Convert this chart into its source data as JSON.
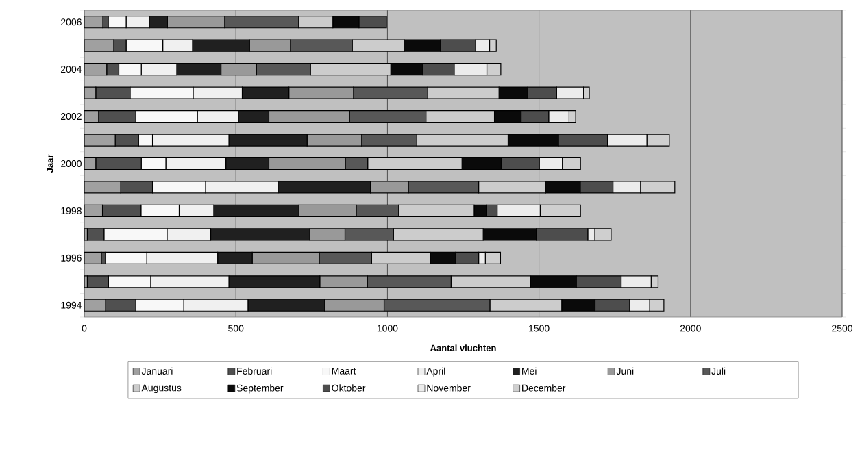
{
  "chart_data": {
    "type": "bar",
    "orientation": "horizontal",
    "stacked": true,
    "xlabel": "Aantal vluchten",
    "ylabel": "Jaar",
    "categories": [
      "2006",
      null,
      "2004",
      null,
      "2002",
      null,
      "2000",
      null,
      "1998",
      null,
      "1996",
      null,
      "1994"
    ],
    "xlim": [
      0,
      2500
    ],
    "xticks": [
      0,
      500,
      1000,
      1500,
      2000,
      2500
    ],
    "grid": "x",
    "legend": "bottom",
    "series": [
      {
        "name": "Januari",
        "color": "#a0a0a0",
        "values": [
          61,
          97,
          74,
          38,
          47,
          102,
          38,
          120,
          60,
          10,
          56,
          10,
          70
        ]
      },
      {
        "name": "Februari",
        "color": "#505050",
        "values": [
          18,
          41,
          40,
          113,
          123,
          77,
          150,
          105,
          127,
          55,
          14,
          70,
          100
        ]
      },
      {
        "name": "Maart",
        "color": "#f8f8f8",
        "values": [
          59,
          121,
          74,
          208,
          203,
          46,
          81,
          175,
          126,
          208,
          136,
          139,
          158
        ]
      },
      {
        "name": "April",
        "color": "#f0f0f0",
        "values": [
          77,
          98,
          117,
          162,
          135,
          252,
          198,
          239,
          114,
          144,
          234,
          258,
          212
        ]
      },
      {
        "name": "Mei",
        "color": "#202020",
        "values": [
          59,
          188,
          146,
          154,
          101,
          258,
          142,
          305,
          281,
          327,
          114,
          300,
          253
        ]
      },
      {
        "name": "Juni",
        "color": "#999999",
        "values": [
          189,
          135,
          117,
          213,
          266,
          180,
          252,
          125,
          189,
          116,
          221,
          157,
          196
        ]
      },
      {
        "name": "Juli",
        "color": "#585858",
        "values": [
          244,
          204,
          178,
          245,
          252,
          182,
          74,
          232,
          140,
          160,
          173,
          276,
          349
        ]
      },
      {
        "name": "Augustus",
        "color": "#cccccc",
        "values": [
          113,
          172,
          265,
          235,
          226,
          301,
          311,
          221,
          249,
          296,
          193,
          261,
          237
        ]
      },
      {
        "name": "September",
        "color": "#0a0a0a",
        "values": [
          86,
          119,
          106,
          95,
          88,
          166,
          129,
          114,
          40,
          175,
          84,
          152,
          110
        ]
      },
      {
        "name": "Oktober",
        "color": "#4d4d4d",
        "values": [
          91,
          116,
          103,
          95,
          91,
          162,
          126,
          108,
          36,
          170,
          76,
          148,
          114
        ]
      },
      {
        "name": "November",
        "color": "#ececec",
        "values": [
          null,
          46,
          108,
          89,
          67,
          130,
          76,
          91,
          142,
          23,
          22,
          99,
          66
        ]
      },
      {
        "name": "December",
        "color": "#cfcfcf",
        "values": [
          null,
          22,
          46,
          19,
          22,
          74,
          60,
          113,
          133,
          54,
          50,
          23,
          47
        ]
      }
    ]
  }
}
